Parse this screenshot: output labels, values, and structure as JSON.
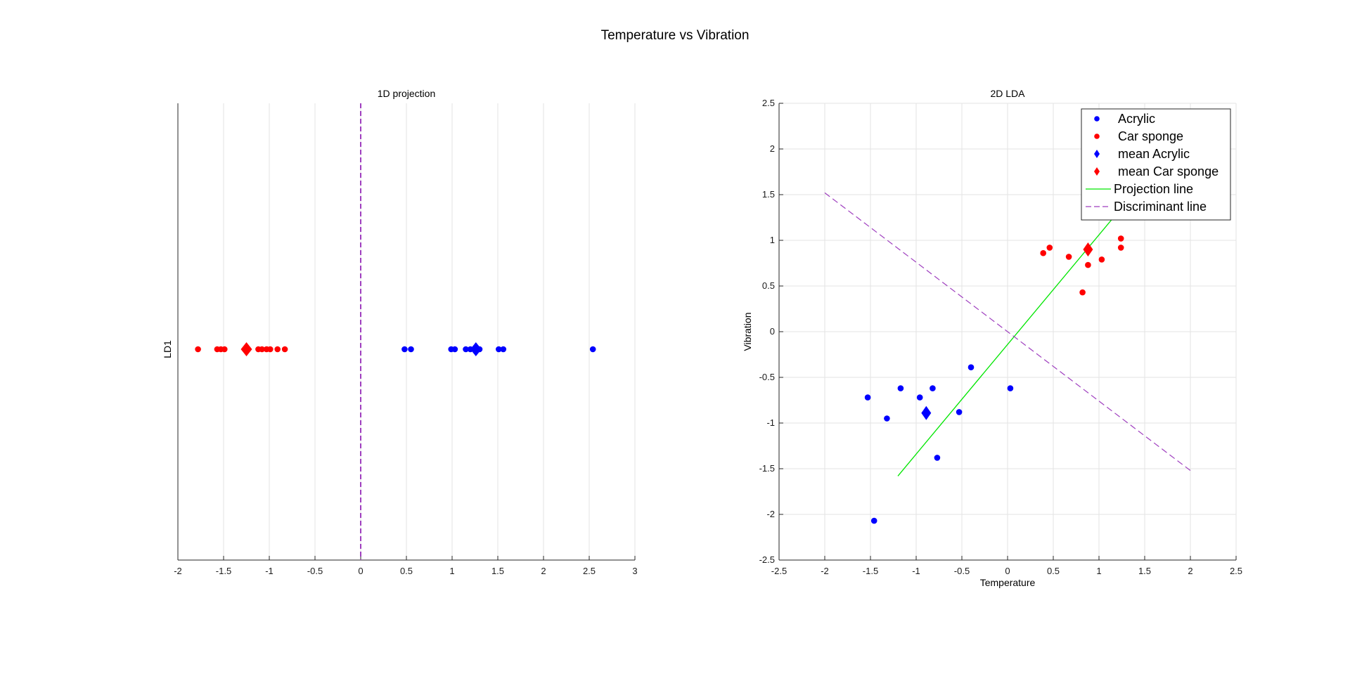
{
  "title": "Temperature vs Vibration",
  "chart_data": [
    {
      "type": "scatter",
      "title": "1D projection",
      "xlabel": "",
      "ylabel": "LD1",
      "xlim": [
        -2,
        3
      ],
      "xticks": [
        -2,
        -1.5,
        -1,
        -0.5,
        0,
        0.5,
        1,
        1.5,
        2,
        2.5,
        3
      ],
      "xtick_labels": [
        "-2",
        "-1.5",
        "-1",
        "-0.5",
        "0",
        "0.5",
        "1",
        "1.5",
        "2",
        "2.5",
        "3"
      ],
      "grid": true,
      "series": [
        {
          "kind": "points",
          "color": "#ff0000",
          "x": [
            -1.78,
            -1.57,
            -1.53,
            -1.49,
            -1.12,
            -1.08,
            -1.03,
            -0.99,
            -0.91,
            -0.83
          ]
        },
        {
          "kind": "points",
          "color": "#0000ff",
          "x": [
            0.48,
            0.55,
            0.99,
            1.03,
            1.15,
            1.2,
            1.3,
            1.51,
            1.56,
            2.54
          ]
        },
        {
          "kind": "mean",
          "color": "#ff0000",
          "x": [
            -1.25
          ]
        },
        {
          "kind": "mean",
          "color": "#0000ff",
          "x": [
            1.26
          ]
        },
        {
          "kind": "discriminant",
          "color": "#9f3fbf",
          "x": [
            0
          ]
        }
      ]
    },
    {
      "type": "scatter",
      "title": "2D LDA",
      "xlabel": "Temperature",
      "ylabel": "Vibration",
      "xlim": [
        -2.5,
        2.5
      ],
      "ylim": [
        -2.5,
        2.5
      ],
      "xticks": [
        -2.5,
        -2,
        -1.5,
        -1,
        -0.5,
        0,
        0.5,
        1,
        1.5,
        2,
        2.5
      ],
      "xtick_labels": [
        "-2.5",
        "-2",
        "-1.5",
        "-1",
        "-0.5",
        "0",
        "0.5",
        "1",
        "1.5",
        "2",
        "2.5"
      ],
      "yticks": [
        -2.5,
        -2,
        -1.5,
        -1,
        -0.5,
        0,
        0.5,
        1,
        1.5,
        2,
        2.5
      ],
      "ytick_labels": [
        "-2.5",
        "-2",
        "-1.5",
        "-1",
        "-0.5",
        "0",
        "0.5",
        "1",
        "1.5",
        "2",
        "2.5"
      ],
      "grid": true,
      "legend_position": "top-right",
      "series": [
        {
          "name": "Acrylic",
          "kind": "points",
          "color": "#0000ff",
          "x": [
            -1.53,
            -1.46,
            -1.32,
            -1.17,
            -0.96,
            -0.82,
            -0.77,
            -0.53,
            -0.4,
            0.03
          ],
          "y": [
            -0.72,
            -2.07,
            -0.95,
            -0.62,
            -0.72,
            -0.62,
            -1.38,
            -0.88,
            -0.39,
            -0.62
          ]
        },
        {
          "name": "Car sponge",
          "kind": "points",
          "color": "#ff0000",
          "x": [
            0.39,
            0.46,
            0.67,
            0.82,
            0.88,
            0.89,
            1.03,
            1.24,
            1.24
          ],
          "y": [
            0.86,
            0.92,
            0.82,
            0.43,
            0.73,
            1.27,
            0.79,
            1.02,
            0.92
          ]
        },
        {
          "name": "mean  Acrylic",
          "kind": "mean",
          "color": "#0000ff",
          "x": [
            -0.89
          ],
          "y": [
            -0.89
          ]
        },
        {
          "name": "mean  Car sponge",
          "kind": "mean",
          "color": "#ff0000",
          "x": [
            0.88
          ],
          "y": [
            0.9
          ]
        },
        {
          "name": "Projection line",
          "kind": "line",
          "color": "#00e600",
          "x": [
            -1.2,
            1.3
          ],
          "y": [
            -1.58,
            1.42
          ]
        },
        {
          "name": "Discriminant line",
          "kind": "dashed",
          "color": "#9f3fbf",
          "x": [
            -2,
            2
          ],
          "y": [
            1.52,
            -1.52
          ]
        }
      ]
    }
  ]
}
